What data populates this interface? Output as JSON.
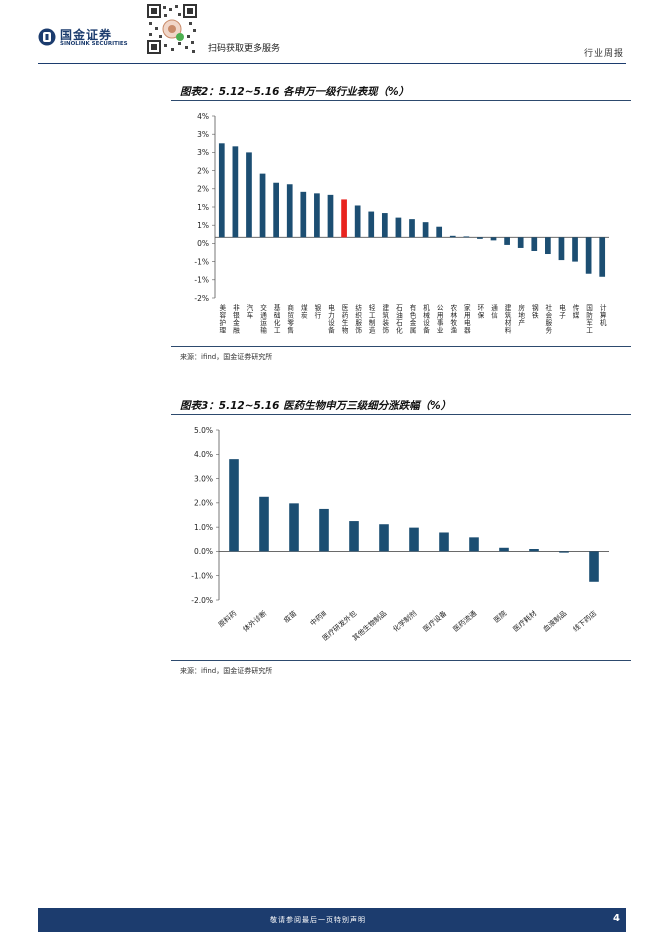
{
  "header": {
    "logo_cn": "国金证券",
    "logo_en": "SINOLINK SECURITIES",
    "scan_text": "扫码获取更多服务",
    "doc_type": "行业周报",
    "qr_icon": "qr-code-icon"
  },
  "figure2": {
    "title": "图表2：5.12~5.16 各申万一级行业表现（%）",
    "source": "来源：ifind，国金证券研究所",
    "chart_data": {
      "type": "bar",
      "y_unit": "%",
      "ylim": [
        -2,
        4
      ],
      "y_ticks": [
        "4%",
        "3%",
        "3%",
        "2%",
        "2%",
        "1%",
        "1%",
        "0%",
        "-1%",
        "-1%",
        "-2%"
      ],
      "grid": false,
      "bar_color": "#1c4e72",
      "highlight_color": "#e8231e",
      "highlight_category": "医药生物",
      "categories": [
        "美容护理",
        "非银金融",
        "汽车",
        "交通运输",
        "基础化工",
        "商贸零售",
        "煤炭",
        "银行",
        "电力设备",
        "医药生物",
        "纺织服饰",
        "轻工制造",
        "建筑装饰",
        "石油石化",
        "有色金属",
        "机械设备",
        "公用事业",
        "农林牧渔",
        "家用电器",
        "环保",
        "通信",
        "建筑材料",
        "房地产",
        "钢铁",
        "社会服务",
        "电子",
        "传媒",
        "国防军工",
        "计算机"
      ],
      "values": [
        3.1,
        3.0,
        2.8,
        2.1,
        1.8,
        1.75,
        1.5,
        1.45,
        1.4,
        1.25,
        1.05,
        0.85,
        0.8,
        0.65,
        0.6,
        0.5,
        0.35,
        0.05,
        0.03,
        -0.05,
        -0.1,
        -0.25,
        -0.35,
        -0.45,
        -0.55,
        -0.75,
        -0.8,
        -1.2,
        -1.3
      ]
    }
  },
  "figure3": {
    "title": "图表3：5.12~5.16 医药生物申万三级细分涨跌幅（%）",
    "source": "来源：ifind，国金证券研究所",
    "chart_data": {
      "type": "bar",
      "y_unit": "%",
      "ylim": [
        -2,
        5
      ],
      "y_ticks": [
        "5.0%",
        "4.0%",
        "3.0%",
        "2.0%",
        "1.0%",
        "0.0%",
        "-1.0%",
        "-2.0%"
      ],
      "grid": false,
      "bar_color": "#1c4e72",
      "categories": [
        "原料药",
        "体外诊断",
        "疫苗",
        "中药Ⅲ",
        "医疗研发外包",
        "其他生物制品",
        "化学制剂",
        "医疗设备",
        "医药流通",
        "医院",
        "医疗耗材",
        "血液制品",
        "线下药店"
      ],
      "values": [
        3.8,
        2.25,
        1.98,
        1.75,
        1.25,
        1.12,
        0.98,
        0.78,
        0.58,
        0.15,
        0.1,
        -0.05,
        -1.25
      ]
    }
  },
  "footer": {
    "text": "敬请参阅最后一页特别声明",
    "page": "4"
  }
}
